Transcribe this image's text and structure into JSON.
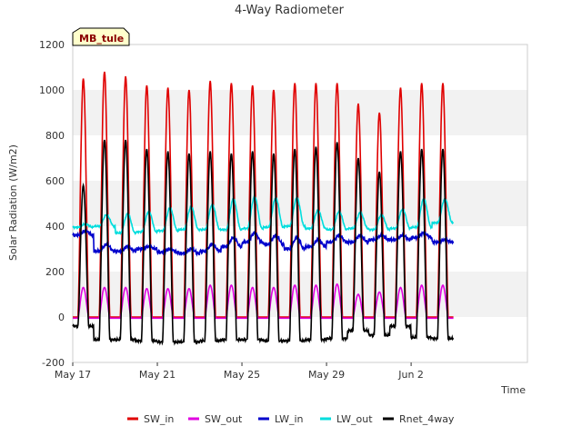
{
  "chart_data": {
    "type": "line",
    "title": "4-Way Radiometer",
    "xlabel": "Time",
    "ylabel": "Solar Radiation (W/m2)",
    "site_tag": "MB_tule",
    "ylim": [
      -200,
      1200
    ],
    "yticks": [
      -200,
      0,
      200,
      400,
      600,
      800,
      1000,
      1200
    ],
    "xlim_days": [
      0,
      21.5
    ],
    "xticks": [
      {
        "label": "May 17",
        "day": 0
      },
      {
        "label": "May 21",
        "day": 4
      },
      {
        "label": "May 25",
        "day": 8
      },
      {
        "label": "May 29",
        "day": 12
      },
      {
        "label": "Jun 2",
        "day": 16
      }
    ],
    "grid": "alternating horizontal bands",
    "legend_position": "bottom",
    "days": [
      "May 17",
      "May 18",
      "May 19",
      "May 20",
      "May 21",
      "May 22",
      "May 23",
      "May 24",
      "May 25",
      "May 26",
      "May 27",
      "May 28",
      "May 29",
      "May 30",
      "May 31",
      "Jun 1",
      "Jun 2",
      "Jun 3"
    ],
    "series": [
      {
        "name": "SW_in",
        "color": "#e00000",
        "daily_peak": [
          1050,
          1080,
          1060,
          1020,
          1010,
          1000,
          1040,
          1030,
          1020,
          1000,
          1030,
          1030,
          1030,
          940,
          900,
          1010,
          1030,
          1030
        ],
        "night_value": 0
      },
      {
        "name": "SW_out",
        "color": "#e000e0",
        "daily_peak": [
          130,
          130,
          130,
          125,
          125,
          125,
          140,
          140,
          130,
          130,
          140,
          140,
          145,
          100,
          110,
          130,
          140,
          140
        ],
        "night_value": -5
      },
      {
        "name": "LW_in",
        "color": "#0000cc",
        "daily_min": [
          360,
          290,
          290,
          300,
          285,
          280,
          290,
          310,
          330,
          320,
          300,
          310,
          330,
          330,
          340,
          340,
          350,
          330
        ],
        "daily_max": [
          380,
          320,
          310,
          310,
          300,
          300,
          320,
          350,
          370,
          360,
          350,
          340,
          360,
          360,
          360,
          360,
          370,
          340
        ]
      },
      {
        "name": "LW_out",
        "color": "#00dddd",
        "daily_min": [
          395,
          400,
          370,
          375,
          380,
          385,
          385,
          385,
          390,
          395,
          400,
          390,
          385,
          390,
          385,
          390,
          395,
          415
        ],
        "daily_max": [
          410,
          450,
          455,
          465,
          480,
          485,
          495,
          520,
          530,
          525,
          525,
          470,
          465,
          460,
          450,
          475,
          520,
          520
        ]
      },
      {
        "name": "Rnet_4way",
        "color": "#000000",
        "daily_peak": [
          580,
          780,
          780,
          740,
          730,
          720,
          730,
          720,
          730,
          720,
          740,
          750,
          770,
          700,
          640,
          730,
          740,
          740
        ],
        "night_value": [
          -40,
          -100,
          -100,
          -105,
          -110,
          -110,
          -105,
          -100,
          -100,
          -105,
          -105,
          -100,
          -95,
          -60,
          -80,
          -40,
          -90,
          -95
        ]
      }
    ]
  }
}
